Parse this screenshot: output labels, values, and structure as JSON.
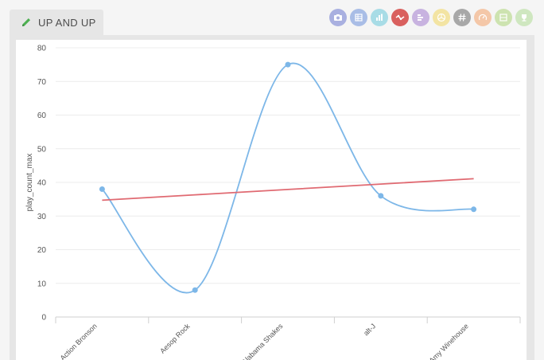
{
  "tab": {
    "title": "UP AND UP",
    "icon": "pencil-icon"
  },
  "toolbar": {
    "buttons": [
      {
        "name": "camera-icon",
        "color": "#a9b0e0"
      },
      {
        "name": "table-icon",
        "color": "#a9bde6"
      },
      {
        "name": "bar-chart-icon",
        "color": "#a8dce6"
      },
      {
        "name": "line-chart-icon",
        "color": "#d9605e",
        "active": true
      },
      {
        "name": "horizontal-bar-icon",
        "color": "#c8b3e0"
      },
      {
        "name": "pie-chart-icon",
        "color": "#f3e4a3"
      },
      {
        "name": "hash-icon",
        "color": "#a8a8a8"
      },
      {
        "name": "gauge-icon",
        "color": "#f4c7a8"
      },
      {
        "name": "layout-icon",
        "color": "#cde3b0"
      },
      {
        "name": "trophy-icon",
        "color": "#cfe7c0"
      }
    ]
  },
  "chart_data": {
    "type": "line",
    "categories": [
      "Action Bronson",
      "Aesop Rock",
      "Alabama Shakes",
      "alt-J",
      "Amy Winehouse"
    ],
    "series": [
      {
        "values": [
          38,
          8,
          75,
          36,
          32
        ],
        "color": "#7db7e8",
        "smooth": true,
        "markers": true
      },
      {
        "values": [
          34.7,
          36.3,
          37.9,
          39.5,
          41.1
        ],
        "color": "#e06a72",
        "smooth": false,
        "markers": false
      }
    ],
    "xlabel": "",
    "ylabel": "play_count_max",
    "ylim": [
      0,
      80
    ],
    "yticks": [
      0,
      10,
      20,
      30,
      40,
      50,
      60,
      70,
      80
    ],
    "grid": true
  }
}
